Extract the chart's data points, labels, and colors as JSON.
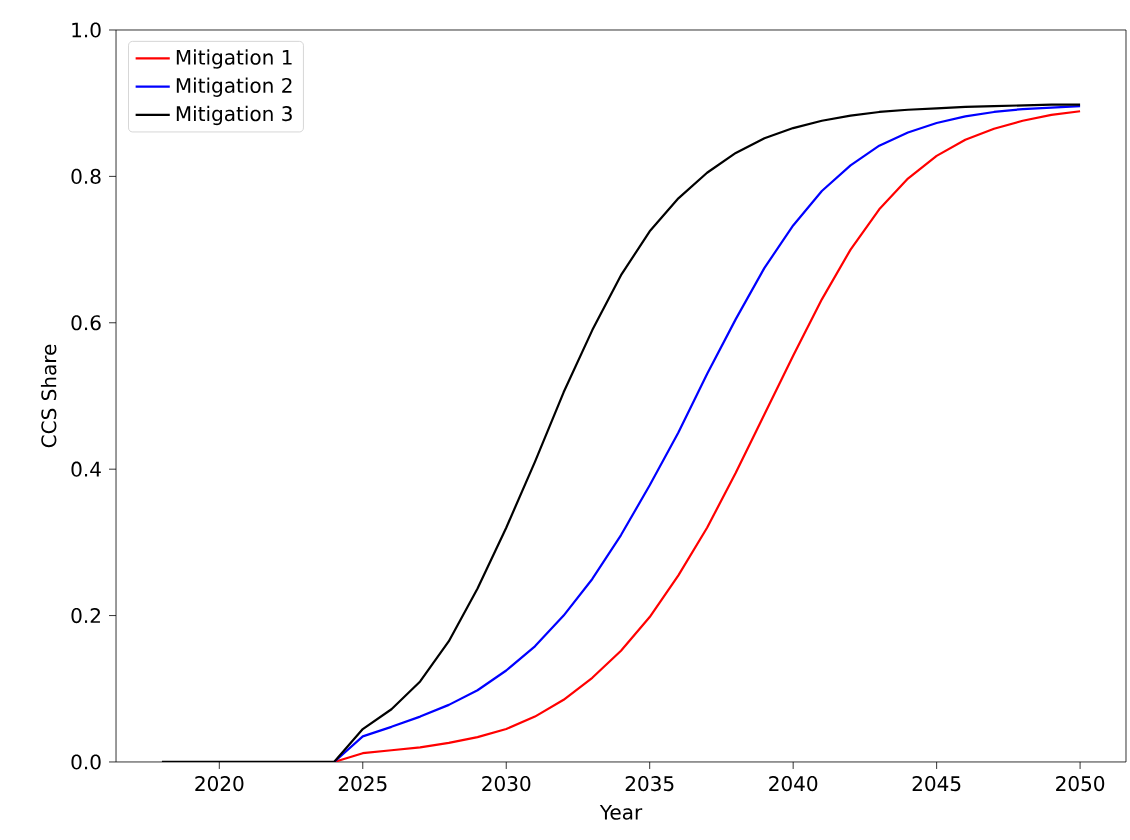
{
  "chart_data": {
    "type": "line",
    "xlabel": "Year",
    "ylabel": "CCS Share",
    "x": [
      2018,
      2019,
      2020,
      2021,
      2022,
      2023,
      2024,
      2025,
      2026,
      2027,
      2028,
      2029,
      2030,
      2031,
      2032,
      2033,
      2034,
      2035,
      2036,
      2037,
      2038,
      2039,
      2040,
      2041,
      2042,
      2043,
      2044,
      2045,
      2046,
      2047,
      2048,
      2049,
      2050
    ],
    "series": [
      {
        "name": "Mitigation 1",
        "color": "#ff0000",
        "values": [
          null,
          null,
          null,
          null,
          null,
          null,
          0,
          0.012,
          0.016,
          0.02,
          0.026,
          0.034,
          0.045,
          0.062,
          0.085,
          0.115,
          0.152,
          0.198,
          0.255,
          0.32,
          0.395,
          0.475,
          0.555,
          0.632,
          0.7,
          0.755,
          0.797,
          0.828,
          0.85,
          0.865,
          0.876,
          0.884,
          0.889
        ]
      },
      {
        "name": "Mitigation 2",
        "color": "#0000ff",
        "values": [
          null,
          null,
          null,
          null,
          null,
          null,
          0,
          0.035,
          0.048,
          0.062,
          0.078,
          0.098,
          0.125,
          0.158,
          0.2,
          0.25,
          0.31,
          0.378,
          0.45,
          0.53,
          0.605,
          0.675,
          0.733,
          0.78,
          0.815,
          0.842,
          0.86,
          0.873,
          0.882,
          0.888,
          0.892,
          0.894,
          0.896
        ]
      },
      {
        "name": "Mitigation 3",
        "color": "#000000",
        "values": [
          0,
          0,
          0,
          0,
          0,
          0,
          0,
          0.045,
          0.072,
          0.11,
          0.165,
          0.237,
          0.32,
          0.41,
          0.505,
          0.59,
          0.665,
          0.725,
          0.77,
          0.805,
          0.832,
          0.852,
          0.866,
          0.876,
          0.883,
          0.888,
          0.891,
          0.893,
          0.895,
          0.896,
          0.897,
          0.898,
          0.898
        ]
      }
    ],
    "xlim": [
      2016.4,
      2051.6
    ],
    "ylim": [
      0,
      1
    ],
    "xticks": [
      2020,
      2025,
      2030,
      2035,
      2040,
      2045,
      2050
    ],
    "yticks": [
      {
        "value": 0,
        "label": "0.0"
      },
      {
        "value": 0.2,
        "label": "0.2"
      },
      {
        "value": 0.4,
        "label": "0.4"
      },
      {
        "value": 0.6,
        "label": "0.6"
      },
      {
        "value": 0.8,
        "label": "0.8"
      },
      {
        "value": 1,
        "label": "1.0"
      }
    ],
    "legend": "top left",
    "grid": false,
    "marker": "none",
    "line_style": "solid"
  }
}
